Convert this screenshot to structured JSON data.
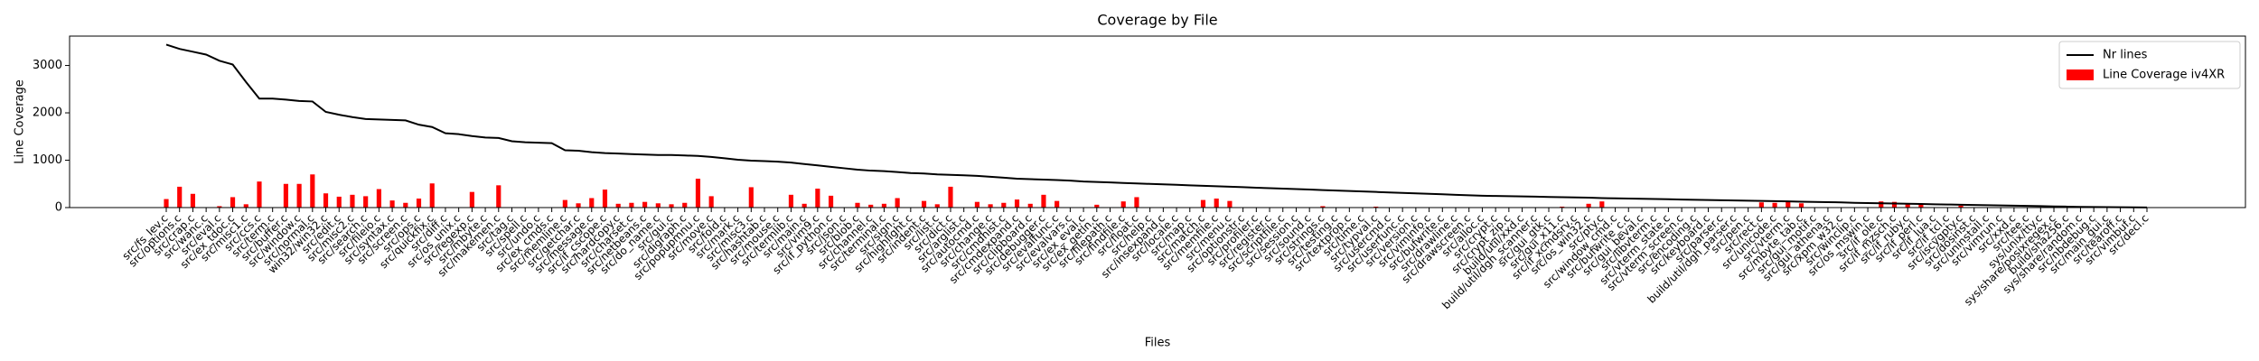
{
  "chart_data": {
    "type": "bar",
    "title": "Coverage by File",
    "xlabel": "Files",
    "ylabel": "Line Coverage",
    "categories": [
      "src/fs_lev.c",
      "src/options.c",
      "src/crap.c",
      "src/wanc.c",
      "src/eval.c",
      "src/ex_tdoc.c",
      "src/misc1.c",
      "src/ccs.c",
      "src/term.c",
      "src/buffer.c",
      "src/window.c",
      "src/normal.c",
      "win32/win32.c",
      "src/edit.c",
      "src/misc2.c",
      "src/search.c",
      "src/fileio.c",
      "src/syntax.c",
      "src/screen.c",
      "src/ops.c",
      "src/quickfix.c",
      "src/diff.c",
      "src/os_unix.c",
      "src/regexp.c",
      "src/mbyte.c",
      "src/makemen.c",
      "src/tag.c",
      "src/spell.c",
      "src/undo.c",
      "src/ex_cmds.c",
      "src/memline.c",
      "src/getchar.c",
      "src/message.c",
      "src/if_cscope.c",
      "src/hardcopy.c",
      "src/charset.c",
      "src/netbeans.c",
      "src/do_name.c",
      "src/gui.c",
      "src/digraph.c",
      "src/popupmnu.c",
      "src/move.c",
      "src/fold.c",
      "src/mark.c",
      "src/misc3.c",
      "src/hashtab.c",
      "src/mouse.c",
      "src/termlib.c",
      "src/main.c",
      "src/vim9.c",
      "src/if_python.c",
      "src/json.c",
      "src/blob.c",
      "src/channel.c",
      "src/terminal.c",
      "src/sign.c",
      "src/highlight.c",
      "src/indent.c",
      "src/list.c",
      "src/dict.c",
      "src/arglist.c",
      "src/autocmd.c",
      "src/change.c",
      "src/cmdhist.c",
      "src/cmdexpand.c",
      "src/clipboard.c",
      "src/debugger.c",
      "src/evalfunc.c",
      "src/evalvars.c",
      "src/ex_eval.c",
      "src/ex_getln.c",
      "src/filepath.c",
      "src/findfile.c",
      "src/float.c",
      "src/help.c",
      "src/insexpand.c",
      "src/locale.c",
      "src/map.c",
      "src/match.c",
      "src/memfile.c",
      "src/menu.c",
      "src/optionstr.c",
      "src/profiler.c",
      "src/register.c",
      "src/scriptfile.c",
      "src/session.c",
      "src/sound.c",
      "src/strings.c",
      "src/testing.c",
      "src/textprop.c",
      "src/time.c",
      "src/typval.c",
      "src/usercmd.c",
      "src/userfunc.c",
      "src/version.c",
      "src/viminfo.c",
      "src/bufwrite.c",
      "src/drawline.c",
      "src/drawscreen.c",
      "src/alloc.c",
      "src/crypt.c",
      "src/crypt_zip.c",
      "build/util/xxd.c",
      "build/util/dgh_scanner.c",
      "src/gui_gtk.c",
      "src/gui_x11.c",
      "src/if_xcmdsrv.c",
      "src/os_win32.c",
      "src/pty.c",
      "src/window_cmd.c",
      "src/bufwrite_c.c",
      "src/gui_beval.c",
      "src/libvterm.c",
      "src/vterm_state.c",
      "src/vterm_screen.c",
      "src/encoding.c",
      "src/keyboard.c",
      "src/parser.c",
      "build/util/dgh_parser.c",
      "src/pen.c",
      "src/rect.c",
      "src/unicode.c",
      "src/vterm.c",
      "src/mbyte_tab.c",
      "src/gui_motif.c",
      "src/gui_athena.c",
      "src/xpm_w32.c",
      "src/winclip.c",
      "src/os_mswin.c",
      "src/if_ole.c",
      "src/if_mzsch.c",
      "src/if_ruby.c",
      "src/if_perl.c",
      "src/if_lua.c",
      "src/if_tcl.c",
      "src/iscygpty.c",
      "src/dosinst.c",
      "src/uninstall.c",
      "src/vimrun.c",
      "src/xxd.c",
      "src/tee.c",
      "sys/unix/tty.c",
      "sys/share/posixregex.c",
      "build/sha256.c",
      "sys/share/random.c",
      "src/nbdebug.c",
      "src/main_gui.c",
      "src/tearoff.c",
      "src/vimbuf.c",
      "src/decl.c"
    ],
    "series": [
      {
        "name": "Nr lines",
        "type": "line",
        "color": "#000000",
        "values": [
          3440,
          3350,
          3290,
          3230,
          3100,
          3020,
          2650,
          2300,
          2300,
          2280,
          2250,
          2240,
          2020,
          1960,
          1910,
          1870,
          1860,
          1850,
          1840,
          1750,
          1700,
          1570,
          1550,
          1510,
          1480,
          1470,
          1400,
          1380,
          1370,
          1360,
          1210,
          1200,
          1170,
          1150,
          1140,
          1130,
          1120,
          1110,
          1110,
          1100,
          1090,
          1070,
          1040,
          1010,
          990,
          980,
          970,
          950,
          920,
          890,
          860,
          830,
          800,
          780,
          770,
          750,
          730,
          720,
          700,
          690,
          680,
          670,
          650,
          630,
          610,
          600,
          590,
          580,
          570,
          550,
          540,
          530,
          520,
          510,
          500,
          490,
          480,
          470,
          460,
          450,
          440,
          430,
          420,
          410,
          400,
          390,
          380,
          370,
          360,
          350,
          340,
          330,
          320,
          310,
          300,
          290,
          280,
          270,
          260,
          250,
          245,
          240,
          235,
          230,
          225,
          220,
          215,
          210,
          200,
          195,
          190,
          185,
          180,
          175,
          170,
          165,
          160,
          155,
          150,
          145,
          140,
          135,
          130,
          125,
          120,
          115,
          110,
          100,
          95,
          90,
          85,
          80,
          75,
          70,
          65,
          60,
          55,
          50,
          45,
          40,
          35,
          30,
          25,
          20,
          15,
          12,
          10,
          8,
          5,
          3
        ]
      },
      {
        "name": "Line Coverage iv4XR",
        "type": "bar",
        "color": "#ff0000",
        "values": [
          180,
          440,
          290,
          0,
          30,
          220,
          70,
          550,
          0,
          500,
          500,
          700,
          300,
          230,
          270,
          240,
          390,
          150,
          100,
          190,
          510,
          0,
          0,
          330,
          0,
          470,
          0,
          0,
          0,
          0,
          160,
          90,
          200,
          380,
          80,
          100,
          120,
          90,
          70,
          100,
          610,
          240,
          0,
          0,
          430,
          0,
          0,
          270,
          80,
          400,
          250,
          0,
          100,
          60,
          80,
          200,
          0,
          140,
          70,
          440,
          0,
          120,
          70,
          100,
          170,
          80,
          270,
          140,
          0,
          0,
          60,
          0,
          130,
          220,
          0,
          0,
          0,
          0,
          160,
          190,
          140,
          0,
          0,
          0,
          0,
          0,
          0,
          30,
          0,
          0,
          0,
          20,
          0,
          0,
          0,
          0,
          0,
          0,
          0,
          0,
          0,
          0,
          0,
          0,
          0,
          20,
          0,
          80,
          130,
          0,
          0,
          0,
          0,
          0,
          0,
          0,
          0,
          0,
          0,
          0,
          110,
          100,
          120,
          90,
          0,
          0,
          0,
          0,
          0,
          130,
          120,
          80,
          70,
          0,
          0,
          40,
          0,
          0,
          0,
          0,
          0,
          0,
          0,
          0,
          0,
          0,
          0,
          0,
          0,
          0
        ]
      }
    ],
    "ylim": [
      0,
      3620
    ],
    "yticks": [
      0,
      1000,
      2000,
      3000
    ],
    "grid": false,
    "legend": "upper right"
  }
}
